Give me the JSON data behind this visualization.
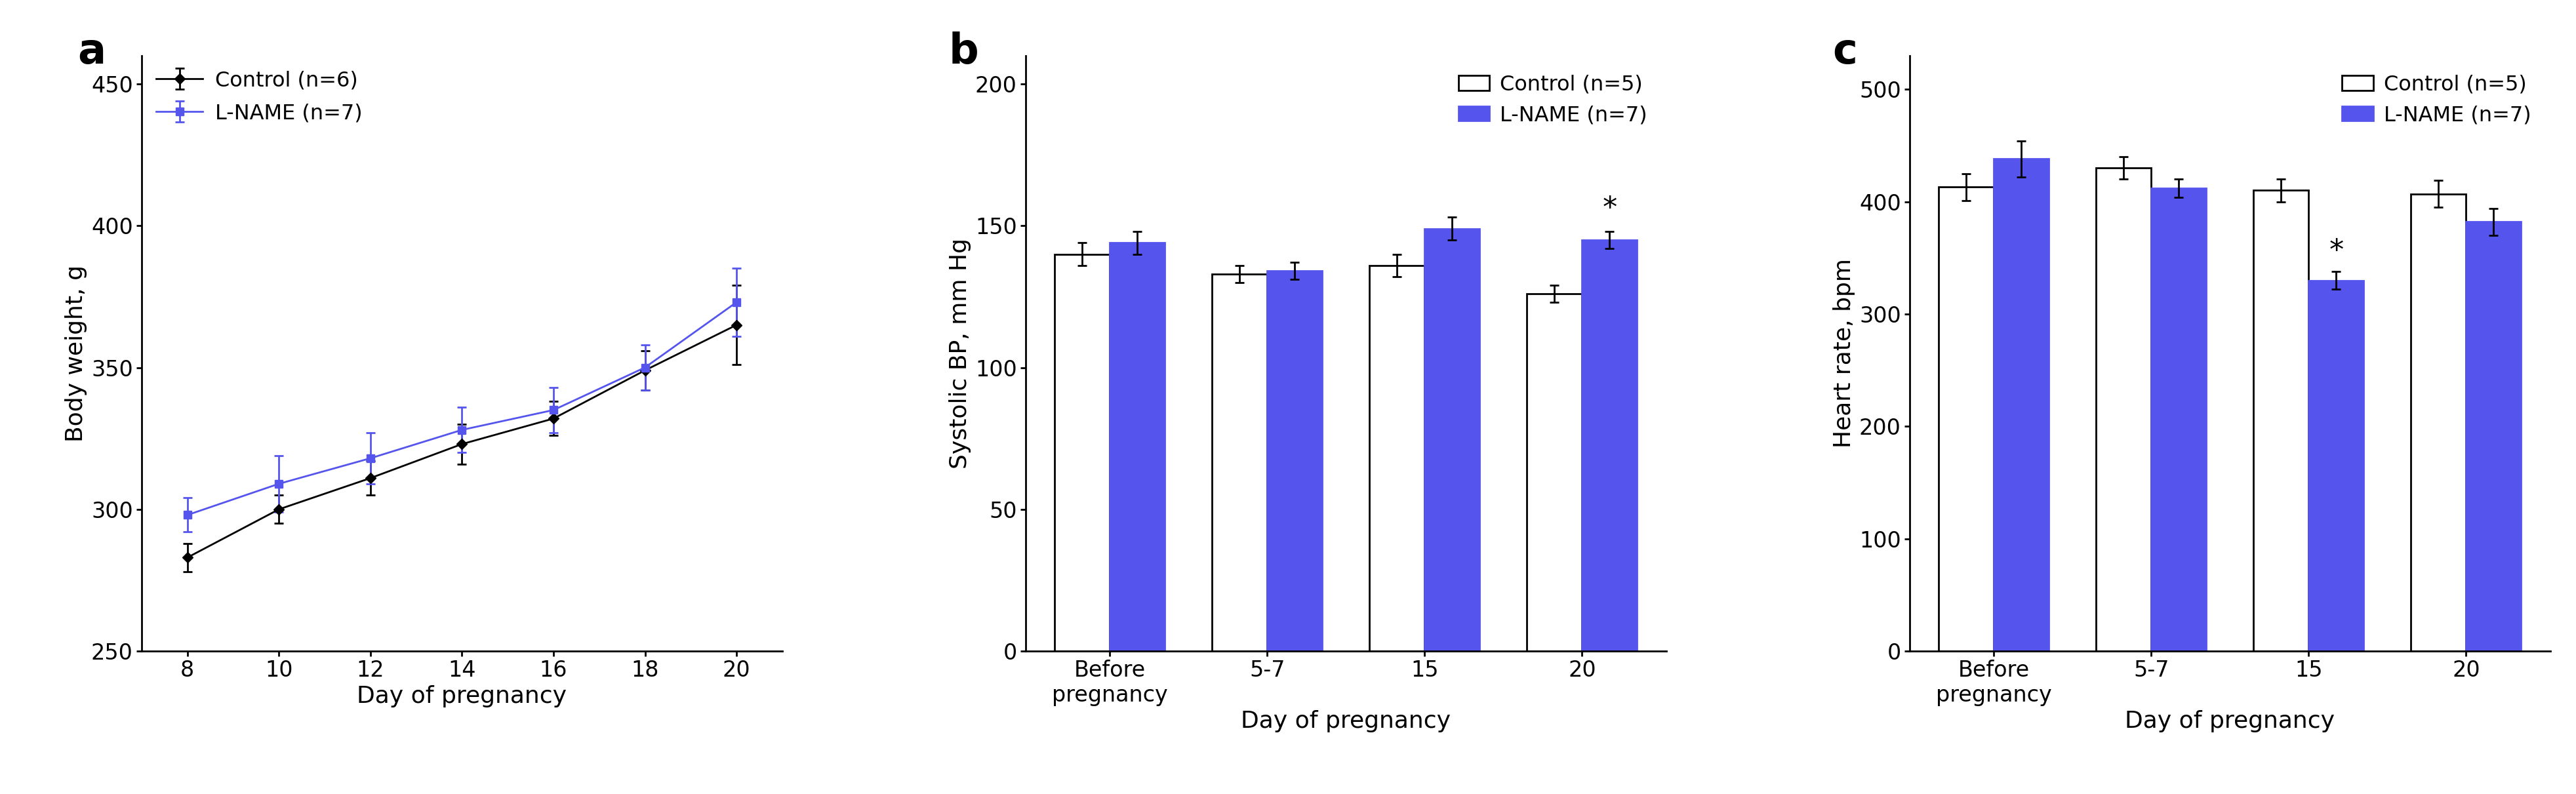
{
  "panel_a": {
    "title": "a",
    "xlabel": "Day of pregnancy",
    "ylabel": "Body weight, g",
    "xlim": [
      7,
      21
    ],
    "ylim": [
      250,
      460
    ],
    "yticks": [
      250,
      300,
      350,
      400,
      450
    ],
    "xticks": [
      8,
      10,
      12,
      14,
      16,
      18,
      20
    ],
    "control": {
      "label": "Control (n=6)",
      "color": "#000000",
      "marker": "D",
      "x": [
        8,
        10,
        12,
        14,
        16,
        18,
        20
      ],
      "y": [
        283,
        300,
        311,
        323,
        332,
        349,
        365
      ],
      "yerr": [
        5,
        5,
        6,
        7,
        6,
        7,
        14
      ]
    },
    "lname": {
      "label": "L-NAME (n=7)",
      "color": "#5555EE",
      "marker": "s",
      "x": [
        8,
        10,
        12,
        14,
        16,
        18,
        20
      ],
      "y": [
        298,
        309,
        318,
        328,
        335,
        350,
        373
      ],
      "yerr": [
        6,
        10,
        9,
        8,
        8,
        8,
        12
      ]
    }
  },
  "panel_b": {
    "title": "b",
    "xlabel": "Day of pregnancy",
    "ylabel": "Systolic BP, mm Hg",
    "ylim": [
      0,
      210
    ],
    "yticks": [
      0,
      50,
      100,
      150,
      200
    ],
    "categories": [
      "Before\npregnancy",
      "5-7",
      "15",
      "20"
    ],
    "control": {
      "label": "Control (n=5)",
      "color": "#ffffff",
      "edgecolor": "#000000",
      "y": [
        140,
        133,
        136,
        126
      ],
      "yerr": [
        4,
        3,
        4,
        3
      ]
    },
    "lname": {
      "label": "L-NAME (n=7)",
      "color": "#5555EE",
      "edgecolor": "#5555EE",
      "y": [
        144,
        134,
        149,
        145
      ],
      "yerr": [
        4,
        3,
        4,
        3
      ]
    },
    "significance": {
      "index": 3,
      "symbol": "*"
    }
  },
  "panel_c": {
    "title": "c",
    "xlabel": "Day of pregnancy",
    "ylabel": "Heart rate, bpm",
    "ylim": [
      0,
      530
    ],
    "yticks": [
      0,
      100,
      200,
      300,
      400,
      500
    ],
    "categories": [
      "Before\npregnancy",
      "5-7",
      "15",
      "20"
    ],
    "control": {
      "label": "Control (n=5)",
      "color": "#ffffff",
      "edgecolor": "#000000",
      "y": [
        413,
        430,
        410,
        407
      ],
      "yerr": [
        12,
        10,
        10,
        12
      ]
    },
    "lname": {
      "label": "L-NAME (n=7)",
      "color": "#5555EE",
      "edgecolor": "#5555EE",
      "y": [
        438,
        412,
        330,
        382
      ],
      "yerr": [
        16,
        8,
        8,
        12
      ]
    },
    "significance": {
      "index": 2,
      "symbol": "*"
    }
  },
  "blue_color": "#5555EE",
  "bar_width": 0.35,
  "capsize": 5,
  "linewidth": 2.0,
  "fontsize_label": 26,
  "fontsize_tick": 24,
  "fontsize_legend": 23,
  "fontsize_panel_label": 46,
  "fontsize_sig": 32
}
